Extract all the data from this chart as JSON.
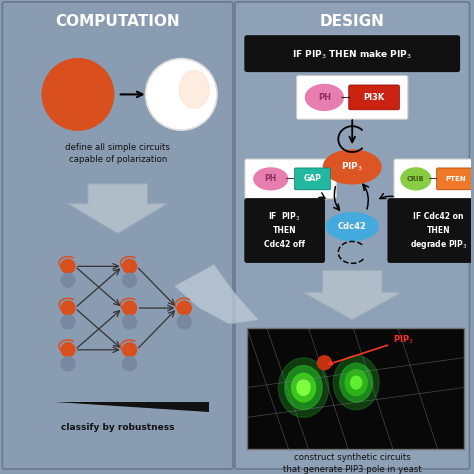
{
  "bg_color": "#8a9cb2",
  "panel_left_color": "#8a9cb2",
  "panel_right_color": "#8fa1b6",
  "title_left": "COMPUTATION",
  "title_right": "DESIGN",
  "caption_left1": "define all simple circuits",
  "caption_left2": "capable of polarization",
  "caption_left3": "classify by robustness",
  "caption_right1": "construct synthetic circuits",
  "caption_right2": "that generate PIP3 pole in yeast",
  "orange_red": "#d94f1e",
  "pink_ph": "#e87db0",
  "red_pi3k": "#cc2211",
  "teal_gap": "#22b8a0",
  "green_crib": "#88cc44",
  "orange_pten": "#f07828",
  "blue_cdc42": "#44aadd",
  "orange_pip3": "#dd5522",
  "gray_node": "#7888a0",
  "arrow_gray": "#b0bcc8",
  "black_box": "#111111",
  "micro_bg": "#080808"
}
